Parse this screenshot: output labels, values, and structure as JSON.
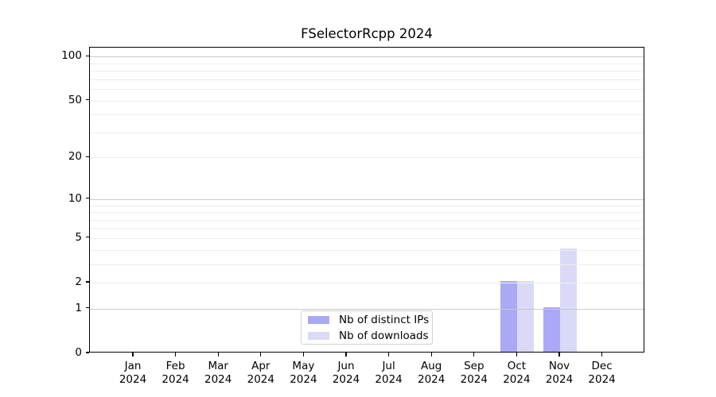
{
  "window": {
    "background": "#ffffff"
  },
  "chart_data": {
    "type": "bar",
    "title": "FSelectorRcpp 2024",
    "yscale": "log1p",
    "ylim": [
      0,
      115
    ],
    "grid": {
      "major_color": "#c8c8c8",
      "minor_color": "#ededed"
    },
    "legend_position": "inside-bottom-center",
    "categories": [
      "Jan\n2024",
      "Feb\n2024",
      "Mar\n2024",
      "Apr\n2024",
      "May\n2024",
      "Jun\n2024",
      "Jul\n2024",
      "Aug\n2024",
      "Sep\n2024",
      "Oct\n2024",
      "Nov\n2024",
      "Dec\n2024"
    ],
    "series": [
      {
        "name": "Nb of distinct IPs",
        "color": "#a9a9f6",
        "values": [
          0,
          0,
          0,
          0,
          0,
          0,
          0,
          0,
          0,
          2,
          1,
          0
        ]
      },
      {
        "name": "Nb of downloads",
        "color": "#dadaf8",
        "values": [
          0,
          0,
          0,
          0,
          0,
          0,
          0,
          0,
          0,
          2,
          4,
          0
        ]
      }
    ],
    "y_tick_labels": [
      0,
      1,
      2,
      5,
      10,
      20,
      50,
      100
    ],
    "y_major_gridlines": [
      1,
      10,
      100
    ],
    "y_minor_gridlines": [
      2,
      3,
      4,
      5,
      6,
      7,
      8,
      9,
      20,
      30,
      40,
      50,
      60,
      70,
      80,
      90
    ]
  }
}
